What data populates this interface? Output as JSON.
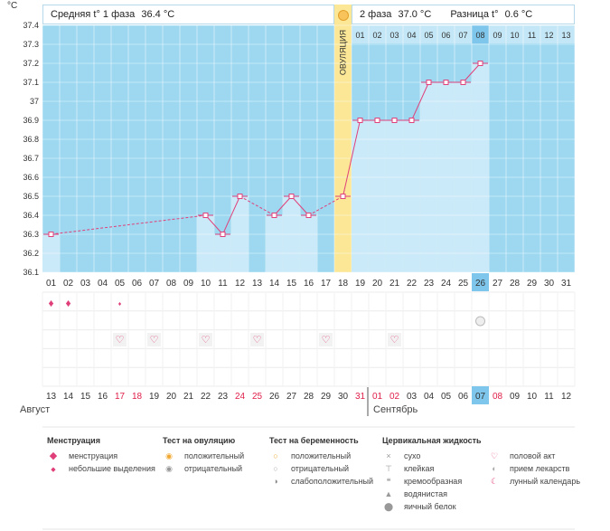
{
  "axis_unit": "°C",
  "header": {
    "phase1_label": "Средняя t° 1 фаза",
    "phase1_value": "36.4 °C",
    "phase2_label": "2 фаза",
    "phase2_value": "37.0 °C",
    "diff_label": "Разница t°",
    "diff_value": "0.6 °C"
  },
  "ovulation_label": "ОВУЛЯЦИЯ",
  "months": {
    "first": "Август",
    "second": "Сентябрь"
  },
  "colors": {
    "grid_bg": "#9dd8f0",
    "bar": "#cbeaf9",
    "line": "#e0407a",
    "ovulation": "#fbe796",
    "highlight": "#7ec6ec",
    "red_text": "#e0204a"
  },
  "chart_data": {
    "type": "line",
    "title": "",
    "xlabel": "",
    "ylabel": "°C",
    "ylim": [
      36.1,
      37.4
    ],
    "yticks": [
      "36.1",
      "36.2",
      "36.3",
      "36.4",
      "36.5",
      "36.6",
      "36.7",
      "36.8",
      "36.9",
      "37",
      "37.1",
      "37.2",
      "37.3",
      "37.4"
    ],
    "cycle_days": [
      "01",
      "02",
      "03",
      "04",
      "05",
      "06",
      "07",
      "08",
      "09",
      "10",
      "11",
      "12",
      "13",
      "14",
      "15",
      "16",
      "17",
      "18",
      "19",
      "20",
      "21",
      "22",
      "23",
      "24",
      "25",
      "26",
      "27",
      "28",
      "29",
      "30",
      "31"
    ],
    "dates": [
      "13",
      "14",
      "15",
      "16",
      "17",
      "18",
      "19",
      "20",
      "21",
      "22",
      "23",
      "24",
      "25",
      "26",
      "27",
      "28",
      "29",
      "30",
      "31",
      "01",
      "02",
      "03",
      "04",
      "05",
      "06",
      "07",
      "08",
      "09",
      "10",
      "11",
      "12"
    ],
    "red_date_indices": [
      4,
      5,
      11,
      12,
      18,
      19,
      20,
      26
    ],
    "highlight_index": 25,
    "ovulation_index": 17,
    "phase2_day_labels": [
      "01",
      "02",
      "03",
      "04",
      "05",
      "06",
      "07",
      "08",
      "09",
      "10",
      "11",
      "12",
      "13"
    ],
    "temperatures": [
      36.3,
      null,
      null,
      null,
      null,
      null,
      null,
      null,
      null,
      36.4,
      36.3,
      36.5,
      null,
      36.4,
      36.5,
      36.4,
      null,
      36.5,
      36.9,
      36.9,
      36.9,
      36.9,
      37.1,
      37.1,
      37.1,
      37.2,
      null,
      null,
      null,
      null,
      null
    ],
    "menstruation_large_indices": [
      0,
      1
    ],
    "menstruation_small_indices": [
      4
    ],
    "sex_indices": [
      4,
      6,
      9,
      12,
      16,
      20
    ],
    "pregnancy_test_negative_indices": [
      25
    ]
  },
  "legend": {
    "menstruation": {
      "title": "Менструация",
      "items": [
        "менструация",
        "небольшие выделения"
      ]
    },
    "ovulation_test": {
      "title": "Тест на овуляцию",
      "items": [
        "положительный",
        "отрицательный"
      ]
    },
    "pregnancy_test": {
      "title": "Тест на беременность",
      "items": [
        "положительный",
        "отрицательный",
        "слабоположительный"
      ]
    },
    "cervical": {
      "title": "Цервикальная жидкость",
      "items": [
        "сухо",
        "клейкая",
        "кремообразная",
        "водянистая",
        "яичный белок"
      ]
    },
    "other": {
      "items": [
        "половой акт",
        "прием лекарств",
        "лунный календарь"
      ]
    }
  }
}
